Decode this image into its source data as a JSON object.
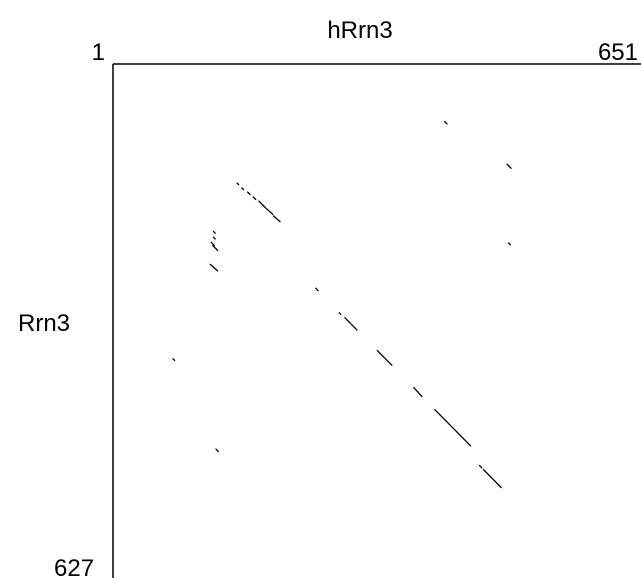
{
  "chart_data": {
    "type": "scatter",
    "title": "",
    "xlabel": "hRrn3",
    "ylabel": "Rrn3",
    "x_range": [
      1,
      651
    ],
    "y_range": [
      1,
      627
    ],
    "x_tick_labels": {
      "start": "1",
      "end": "651"
    },
    "y_tick_labels": {
      "end": "627"
    },
    "grid": false,
    "line_color": "#000000",
    "segments": [
      {
        "x1": 410,
        "y1": 71,
        "x2": 413,
        "y2": 74
      },
      {
        "x1": 487,
        "y1": 123,
        "x2": 492,
        "y2": 128
      },
      {
        "x1": 154,
        "y1": 146,
        "x2": 156,
        "y2": 148
      },
      {
        "x1": 160,
        "y1": 152,
        "x2": 162,
        "y2": 154
      },
      {
        "x1": 167,
        "y1": 157,
        "x2": 170,
        "y2": 160
      },
      {
        "x1": 174,
        "y1": 163,
        "x2": 177,
        "y2": 166
      },
      {
        "x1": 181,
        "y1": 168,
        "x2": 189,
        "y2": 176
      },
      {
        "x1": 190,
        "y1": 177,
        "x2": 198,
        "y2": 184
      },
      {
        "x1": 199,
        "y1": 186,
        "x2": 207,
        "y2": 193
      },
      {
        "x1": 125,
        "y1": 205,
        "x2": 127,
        "y2": 207
      },
      {
        "x1": 125,
        "y1": 212,
        "x2": 127,
        "y2": 214
      },
      {
        "x1": 122,
        "y1": 218,
        "x2": 126,
        "y2": 222
      },
      {
        "x1": 124,
        "y1": 222,
        "x2": 130,
        "y2": 228
      },
      {
        "x1": 121,
        "y1": 245,
        "x2": 130,
        "y2": 253
      },
      {
        "x1": 489,
        "y1": 219,
        "x2": 491,
        "y2": 221
      },
      {
        "x1": 251,
        "y1": 274,
        "x2": 254,
        "y2": 277
      },
      {
        "x1": 280,
        "y1": 304,
        "x2": 282,
        "y2": 306
      },
      {
        "x1": 287,
        "y1": 310,
        "x2": 294,
        "y2": 317
      },
      {
        "x1": 295,
        "y1": 318,
        "x2": 302,
        "y2": 325
      },
      {
        "x1": 327,
        "y1": 350,
        "x2": 335,
        "y2": 358
      },
      {
        "x1": 336,
        "y1": 359,
        "x2": 345,
        "y2": 368
      },
      {
        "x1": 75,
        "y1": 360,
        "x2": 77,
        "y2": 362
      },
      {
        "x1": 372,
        "y1": 395,
        "x2": 382,
        "y2": 406
      },
      {
        "x1": 398,
        "y1": 422,
        "x2": 442,
        "y2": 466
      },
      {
        "x1": 128,
        "y1": 470,
        "x2": 131,
        "y2": 473
      },
      {
        "x1": 453,
        "y1": 490,
        "x2": 456,
        "y2": 493
      },
      {
        "x1": 458,
        "y1": 495,
        "x2": 480,
        "y2": 517
      }
    ]
  }
}
